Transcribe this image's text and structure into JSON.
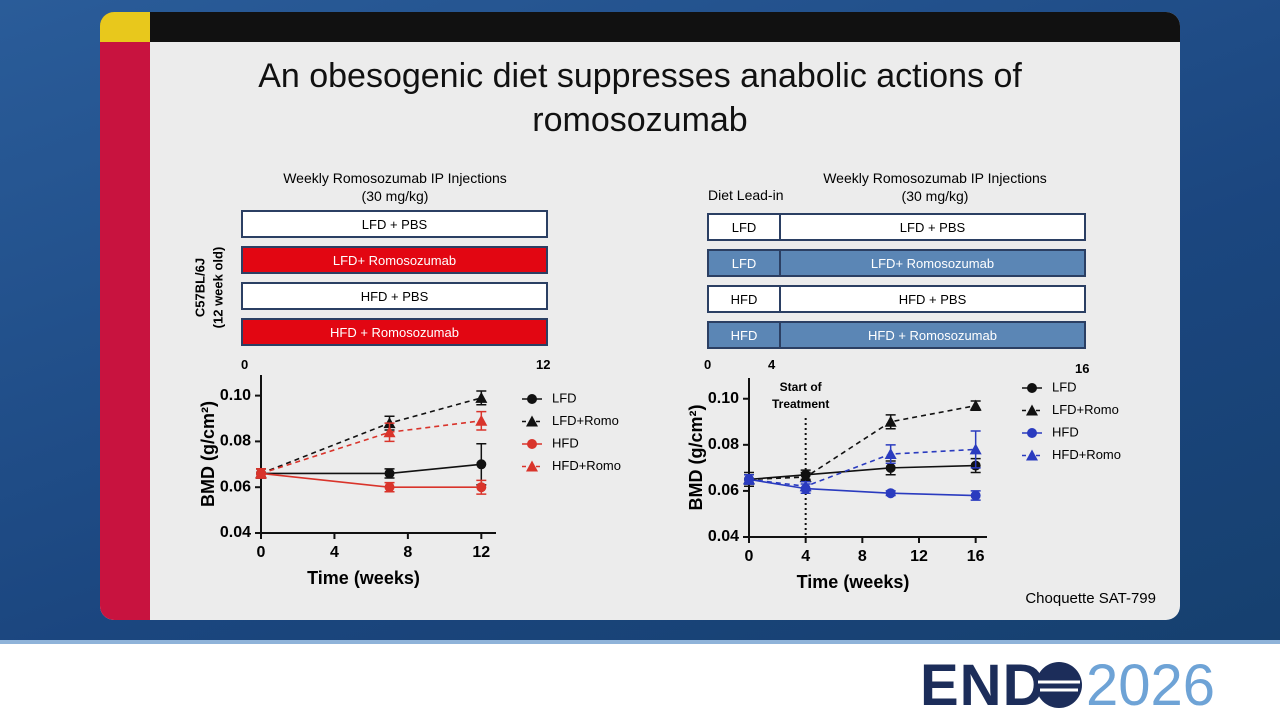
{
  "slide": {
    "title": "An obesogenic diet suppresses anabolic actions of romosozumab",
    "citation": "Choquette SAT-799"
  },
  "design_left": {
    "header": [
      "Weekly Romosozumab IP Injections",
      "(30 mg/kg)"
    ],
    "strain": [
      "C57BL/6J",
      "(12 week old)"
    ],
    "groups": [
      "LFD + PBS",
      "LFD+ Romosozumab",
      "HFD + PBS",
      "HFD + Romosozumab"
    ],
    "timeline": [
      "0",
      "12"
    ]
  },
  "design_right": {
    "lead_in": "Diet Lead-in",
    "header": [
      "Weekly Romosozumab IP Injections",
      "(30 mg/kg)"
    ],
    "diets": [
      "LFD",
      "LFD",
      "HFD",
      "HFD"
    ],
    "groups": [
      "LFD + PBS",
      "LFD+ Romosozumab",
      "HFD + PBS",
      "HFD + Romosozumab"
    ],
    "timeline": [
      "0",
      "4",
      "16"
    ]
  },
  "chart_data": [
    {
      "type": "line",
      "x_label": "Time (weeks)",
      "y_label": "BMD (g/cm²)",
      "x": [
        0,
        7,
        12
      ],
      "xlim": [
        0,
        12.8
      ],
      "xticks": [
        0,
        4,
        8,
        12
      ],
      "ylim": [
        0.04,
        0.109
      ],
      "yticks": [
        0.04,
        0.06,
        0.08,
        {
          "value": 0.1,
          "label": "0.10"
        }
      ],
      "series": [
        {
          "name": "LFD",
          "color": "#111111",
          "marker": "circle",
          "dashed": false,
          "values": [
            0.066,
            0.066,
            0.07
          ],
          "errors": [
            0.002,
            0.002,
            0.009
          ]
        },
        {
          "name": "LFD+Romo",
          "color": "#111111",
          "marker": "triangle",
          "dashed": true,
          "values": [
            0.066,
            0.088,
            0.099
          ],
          "errors": [
            0.002,
            0.003,
            0.003
          ]
        },
        {
          "name": "HFD",
          "color": "#d9342b",
          "marker": "circle",
          "dashed": false,
          "values": [
            0.066,
            0.06,
            0.06
          ],
          "errors": [
            0.002,
            0.002,
            0.003
          ]
        },
        {
          "name": "HFD+Romo",
          "color": "#d9342b",
          "marker": "triangle",
          "dashed": true,
          "values": [
            0.066,
            0.084,
            0.089
          ],
          "errors": [
            0.002,
            0.004,
            0.004
          ]
        }
      ]
    },
    {
      "type": "line",
      "x_label": "Time (weeks)",
      "y_label": "BMD (g/cm²)",
      "x": [
        0,
        4,
        10,
        16
      ],
      "xlim": [
        0,
        16.8
      ],
      "xticks": [
        0,
        4,
        8,
        12,
        16
      ],
      "ylim": [
        0.04,
        0.109
      ],
      "yticks": [
        0.04,
        0.06,
        0.08,
        {
          "value": 0.1,
          "label": "0.10"
        }
      ],
      "annotation": {
        "text": [
          "Start of",
          "Treatment"
        ],
        "x": 4
      },
      "series": [
        {
          "name": "LFD",
          "color": "#111111",
          "marker": "circle",
          "dashed": false,
          "values": [
            0.065,
            0.067,
            0.07,
            0.071
          ],
          "errors": [
            0.003,
            0.002,
            0.003,
            0.003
          ]
        },
        {
          "name": "LFD+Romo",
          "color": "#111111",
          "marker": "triangle",
          "dashed": true,
          "values": [
            0.065,
            0.066,
            0.09,
            0.097
          ],
          "errors": [
            0.002,
            0.002,
            0.003,
            0.002
          ]
        },
        {
          "name": "HFD",
          "color": "#2a3bbf",
          "marker": "circle",
          "dashed": false,
          "values": [
            0.065,
            0.061,
            0.059,
            0.058
          ],
          "errors": [
            0.002,
            0.002,
            0.001,
            0.002
          ]
        },
        {
          "name": "HFD+Romo",
          "color": "#2a3bbf",
          "marker": "triangle",
          "dashed": true,
          "values": [
            0.065,
            0.062,
            0.076,
            0.078
          ],
          "errors": [
            0.002,
            0.002,
            0.004,
            0.008
          ]
        }
      ]
    }
  ],
  "logo": {
    "brand": "END",
    "year": "2026"
  }
}
